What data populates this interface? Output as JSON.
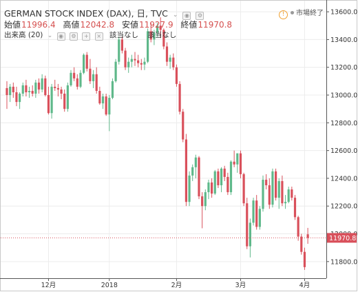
{
  "header": {
    "title": "GERMAN STOCK INDEX (DAX), 日, TVC",
    "ohlc": [
      {
        "label": "始値",
        "value": "11996.4"
      },
      {
        "label": "高値",
        "value": "12042.8"
      },
      {
        "label": "安値",
        "value": "11927.9"
      },
      {
        "label": "終値",
        "value": "11970.8"
      }
    ],
    "volume_label": "出来高 (20)",
    "na1": "該当なし",
    "na2": "該当なし",
    "status": "市場終了"
  },
  "colors": {
    "up": "#5fb88a",
    "down": "#d9505b",
    "grid": "#ececec",
    "price_line": "#d9505b"
  },
  "chart_data": {
    "type": "candlestick",
    "ylim": [
      11680,
      13680
    ],
    "y_ticks": [
      "13600.0",
      "13400.0",
      "13200.0",
      "13000.0",
      "12800.0",
      "12600.0",
      "12400.0",
      "12200.0",
      "12000.0",
      "11800.0"
    ],
    "y_tick_values": [
      13600,
      13400,
      13200,
      13000,
      12800,
      12600,
      12400,
      12200,
      12000,
      11800
    ],
    "x_ticks": [
      {
        "label": "12月",
        "index": 13
      },
      {
        "label": "2018",
        "index": 32
      },
      {
        "label": "2月",
        "index": 53
      },
      {
        "label": "3月",
        "index": 73
      },
      {
        "label": "4月",
        "index": 93
      }
    ],
    "last_price": "11970.8",
    "last_value": 11970.8,
    "candles": [
      [
        13050,
        13100,
        12900,
        13000
      ],
      [
        13000,
        13080,
        12950,
        13060
      ],
      [
        13060,
        13090,
        12980,
        13020
      ],
      [
        13020,
        13060,
        12920,
        12950
      ],
      [
        12950,
        13020,
        12900,
        13010
      ],
      [
        13010,
        13090,
        12990,
        13070
      ],
      [
        13070,
        13110,
        12990,
        13020
      ],
      [
        13020,
        13060,
        12980,
        13030
      ],
      [
        13030,
        13070,
        12990,
        13010
      ],
      [
        13010,
        13110,
        12980,
        13090
      ],
      [
        13090,
        13120,
        13010,
        13040
      ],
      [
        13040,
        13150,
        13020,
        13120
      ],
      [
        13120,
        13140,
        12990,
        13000
      ],
      [
        13000,
        13060,
        12860,
        12870
      ],
      [
        12870,
        13080,
        12830,
        13060
      ],
      [
        13060,
        13110,
        13030,
        13050
      ],
      [
        13050,
        13080,
        12990,
        13040
      ],
      [
        13040,
        13060,
        12970,
        13010
      ],
      [
        13010,
        13040,
        12880,
        12900
      ],
      [
        12900,
        13090,
        12880,
        13070
      ],
      [
        13070,
        13180,
        13060,
        13160
      ],
      [
        13160,
        13200,
        13100,
        13120
      ],
      [
        13120,
        13150,
        13040,
        13060
      ],
      [
        13060,
        13180,
        13050,
        13160
      ],
      [
        13160,
        13300,
        13150,
        13290
      ],
      [
        13290,
        13310,
        13170,
        13190
      ],
      [
        13190,
        13260,
        13080,
        13100
      ],
      [
        13100,
        13180,
        13050,
        13150
      ],
      [
        13150,
        13200,
        13010,
        13030
      ],
      [
        13030,
        13060,
        12930,
        12940
      ],
      [
        12940,
        13010,
        12900,
        12990
      ],
      [
        12990,
        13010,
        12850,
        12860
      ],
      [
        12860,
        13000,
        12740,
        12980
      ],
      [
        12980,
        13120,
        12970,
        13100
      ],
      [
        13100,
        13260,
        13090,
        13240
      ],
      [
        13240,
        13420,
        13220,
        13400
      ],
      [
        13400,
        13420,
        13300,
        13320
      ],
      [
        13320,
        13340,
        13180,
        13200
      ],
      [
        13200,
        13270,
        13160,
        13240
      ],
      [
        13240,
        13290,
        13200,
        13260
      ],
      [
        13260,
        13310,
        13210,
        13250
      ],
      [
        13250,
        13290,
        13200,
        13230
      ],
      [
        13230,
        13260,
        13180,
        13220
      ],
      [
        13220,
        13270,
        13180,
        13240
      ],
      [
        13240,
        13480,
        13230,
        13460
      ],
      [
        13460,
        13520,
        13380,
        13400
      ],
      [
        13400,
        13470,
        13360,
        13450
      ],
      [
        13450,
        13520,
        13420,
        13500
      ],
      [
        13500,
        13560,
        13420,
        13470
      ],
      [
        13470,
        13480,
        13330,
        13350
      ],
      [
        13350,
        13380,
        13210,
        13240
      ],
      [
        13240,
        13290,
        13190,
        13270
      ],
      [
        13270,
        13300,
        13180,
        13200
      ],
      [
        13200,
        13220,
        13060,
        13080
      ],
      [
        13080,
        13100,
        12860,
        12880
      ],
      [
        12880,
        12900,
        12660,
        12680
      ],
      [
        12680,
        12720,
        12200,
        12230
      ],
      [
        12230,
        12450,
        12200,
        12420
      ],
      [
        12420,
        12500,
        12380,
        12480
      ],
      [
        12480,
        12570,
        12400,
        12550
      ],
      [
        12550,
        12560,
        12250,
        12270
      ],
      [
        12270,
        12300,
        12040,
        12200
      ],
      [
        12200,
        12320,
        12170,
        12300
      ],
      [
        12300,
        12390,
        12250,
        12370
      ],
      [
        12370,
        12400,
        12260,
        12290
      ],
      [
        12290,
        12460,
        12280,
        12450
      ],
      [
        12450,
        12470,
        12330,
        12350
      ],
      [
        12350,
        12480,
        12300,
        12470
      ],
      [
        12470,
        12490,
        12380,
        12410
      ],
      [
        12410,
        12440,
        12280,
        12300
      ],
      [
        12300,
        12530,
        12280,
        12520
      ],
      [
        12520,
        12600,
        12480,
        12500
      ],
      [
        12500,
        12580,
        12440,
        12580
      ],
      [
        12580,
        12600,
        12400,
        12430
      ],
      [
        12430,
        12440,
        12200,
        12220
      ],
      [
        12220,
        12260,
        11890,
        11910
      ],
      [
        11910,
        12110,
        11830,
        12080
      ],
      [
        12080,
        12260,
        12060,
        12240
      ],
      [
        12240,
        12280,
        12030,
        12050
      ],
      [
        12050,
        12200,
        12030,
        12180
      ],
      [
        12180,
        12420,
        12160,
        12390
      ],
      [
        12390,
        12430,
        12320,
        12350
      ],
      [
        12350,
        12400,
        12180,
        12210
      ],
      [
        12210,
        12470,
        12190,
        12450
      ],
      [
        12450,
        12470,
        12240,
        12260
      ],
      [
        12260,
        12400,
        12180,
        12380
      ],
      [
        12380,
        12420,
        12200,
        12220
      ],
      [
        12220,
        12280,
        12180,
        12230
      ],
      [
        12230,
        12340,
        12220,
        12320
      ],
      [
        12320,
        12340,
        12240,
        12260
      ],
      [
        12260,
        12280,
        12100,
        12120
      ],
      [
        12120,
        12130,
        11950,
        11980
      ],
      [
        11980,
        12000,
        11850,
        11870
      ],
      [
        11870,
        11900,
        11740,
        11760
      ],
      [
        11996.4,
        12042.8,
        11927.9,
        11970.8
      ]
    ]
  }
}
